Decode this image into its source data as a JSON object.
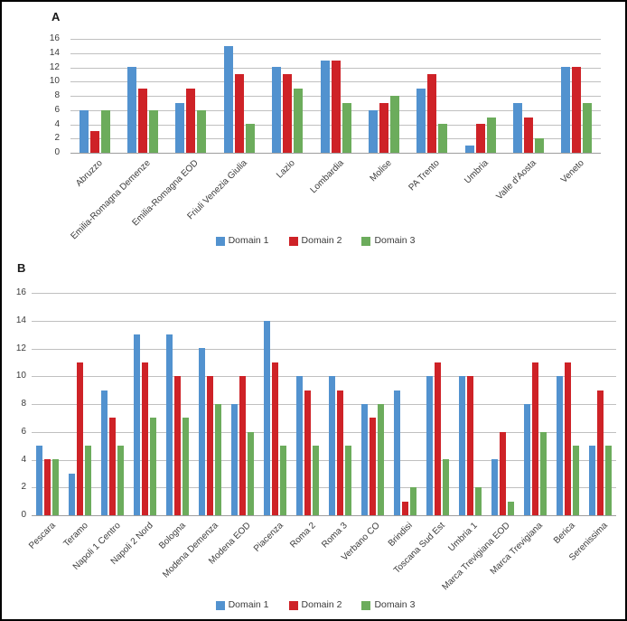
{
  "colors": {
    "series_blue": "#5292CF",
    "series_red": "#CE2227",
    "series_green": "#6CAC5C",
    "gridline": "#C0C0C0",
    "axis_line": "#9E9E9E",
    "text": "#3A3A3A"
  },
  "chart_data": [
    {
      "type": "bar",
      "panel_label": "A",
      "title": "",
      "xlabel": "",
      "ylabel": "",
      "ylim": [
        0,
        16
      ],
      "ytick_step": 2,
      "grid": true,
      "legend_position": "bottom",
      "categories": [
        "Abruzzo",
        "Emilia-Romagna Demenze",
        "Emilia-Romagna EOD",
        "Friuli Venezia Giulia",
        "Lazio",
        "Lombardia",
        "Molise",
        "PA Trento",
        "Umbria",
        "Valle d'Aosta",
        "Veneto"
      ],
      "series": [
        {
          "name": "Domain 1",
          "color": "#5292CF",
          "values": [
            6,
            12,
            7,
            15,
            12,
            13,
            6,
            9,
            1,
            7,
            12
          ]
        },
        {
          "name": "Domain 2",
          "color": "#CE2227",
          "values": [
            3,
            9,
            9,
            11,
            11,
            13,
            7,
            11,
            4,
            5,
            12
          ]
        },
        {
          "name": "Domain 3",
          "color": "#6CAC5C",
          "values": [
            6,
            6,
            6,
            4,
            9,
            7,
            8,
            4,
            5,
            2,
            7
          ]
        }
      ]
    },
    {
      "type": "bar",
      "panel_label": "B",
      "title": "",
      "xlabel": "",
      "ylabel": "",
      "ylim": [
        0,
        16
      ],
      "ytick_step": 2,
      "grid": true,
      "legend_position": "bottom",
      "categories": [
        "Pescara",
        "Teramo",
        "Napoli 1 Centro",
        "Napoli 2 Nord",
        "Bologna",
        "Modena Demenza",
        "Modena EOD",
        "Piacenza",
        "Roma 2",
        "Roma 3",
        "Verbano CO",
        "Brindisi",
        "Toscana Sud Est",
        "Umbria 1",
        "Marca Trevigiana EOD",
        "Marca Trevigiana",
        "Berica",
        "Serenissima"
      ],
      "series": [
        {
          "name": "Domain 1",
          "color": "#5292CF",
          "values": [
            5,
            3,
            9,
            13,
            13,
            12,
            8,
            14,
            10,
            10,
            8,
            9,
            10,
            10,
            4,
            8,
            10,
            5
          ]
        },
        {
          "name": "Domain 2",
          "color": "#CE2227",
          "values": [
            4,
            11,
            7,
            11,
            10,
            10,
            10,
            11,
            9,
            9,
            7,
            1,
            11,
            10,
            6,
            11,
            11,
            9
          ]
        },
        {
          "name": "Domain 3",
          "color": "#6CAC5C",
          "values": [
            4,
            5,
            5,
            7,
            7,
            8,
            6,
            5,
            5,
            5,
            8,
            2,
            4,
            2,
            1,
            6,
            5,
            5
          ]
        }
      ]
    }
  ]
}
